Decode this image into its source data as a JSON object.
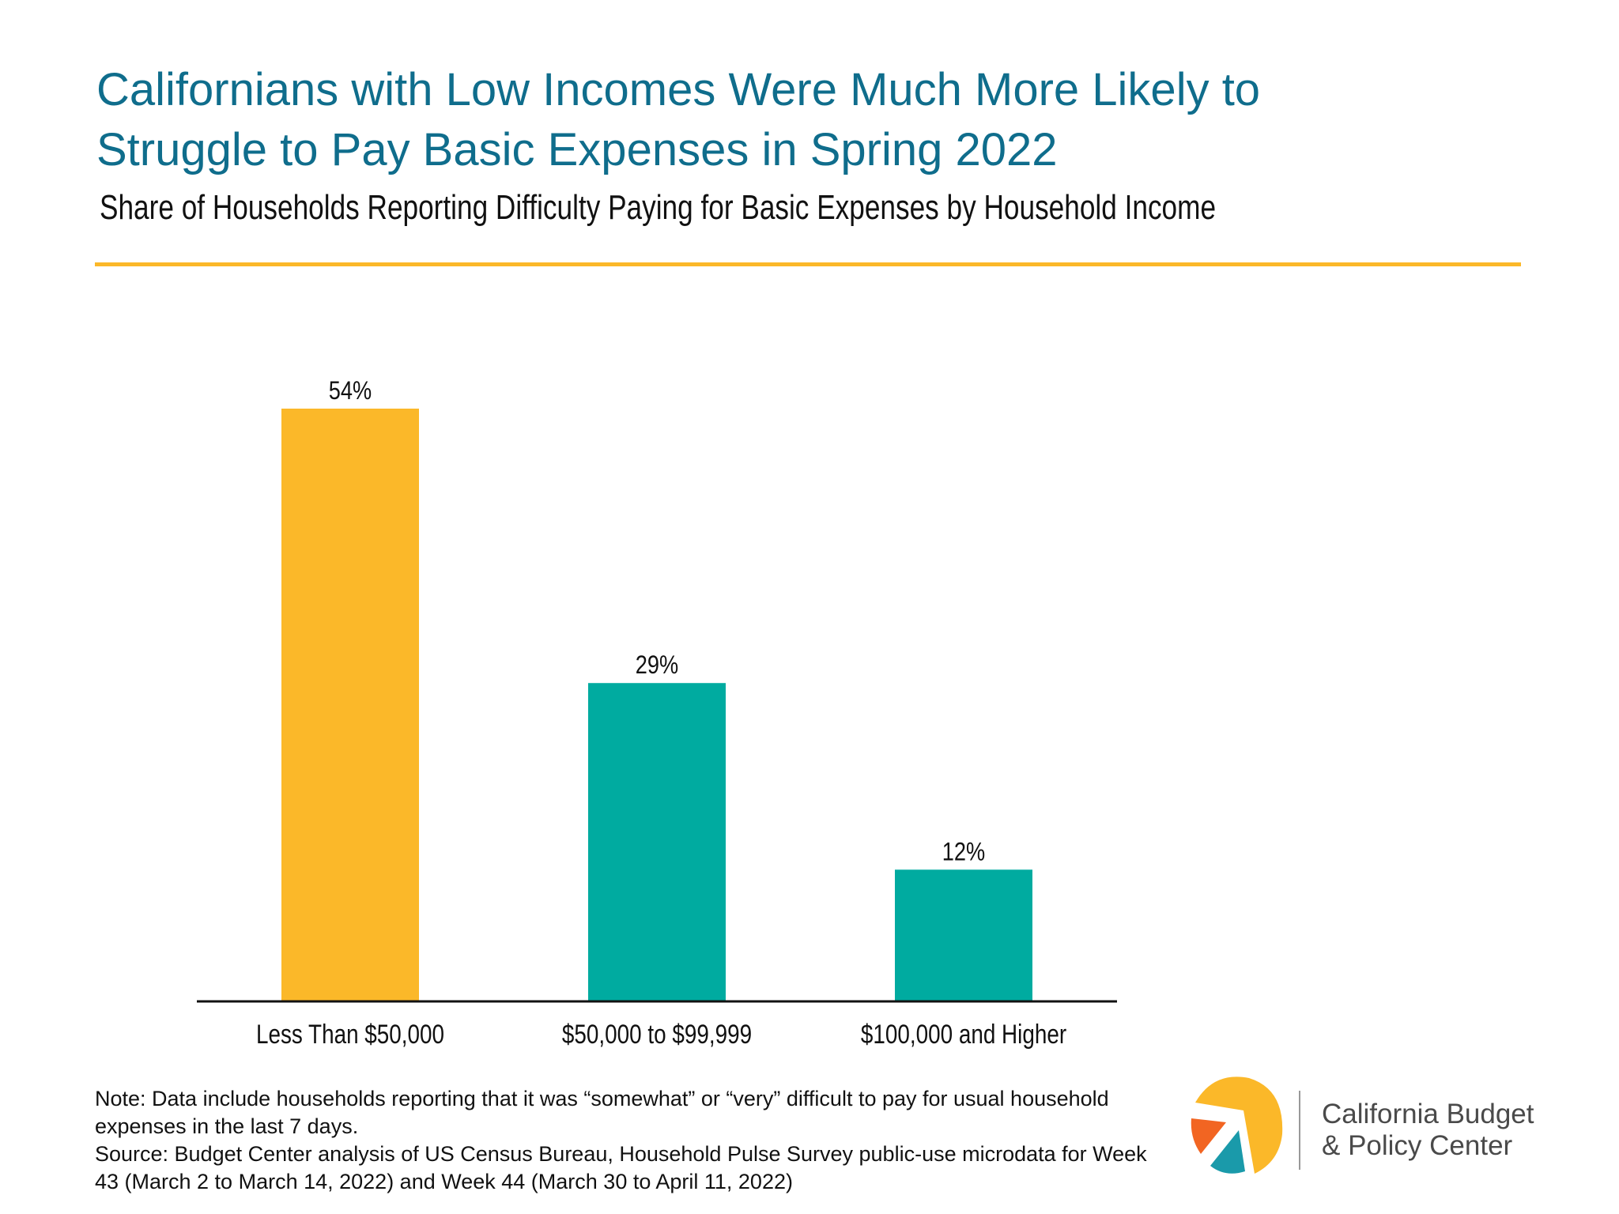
{
  "header": {
    "title_line1": "Californians with Low Incomes Were Much More Likely to",
    "title_line2": "Struggle to Pay Basic Expenses in Spring 2022",
    "subtitle": "Share of Households Reporting Difficulty Paying for Basic Expenses by Household Income"
  },
  "chart_data": {
    "type": "bar",
    "title": "Californians with Low Incomes Were Much More Likely to Struggle to Pay Basic Expenses in Spring 2022",
    "subtitle": "Share of Households Reporting Difficulty Paying for Basic Expenses by Household Income",
    "categories": [
      "Less Than $50,000",
      "$50,000 to $99,999",
      "$100,000 and Higher"
    ],
    "values": [
      54,
      29,
      12
    ],
    "value_labels": [
      "54%",
      "29%",
      "12%"
    ],
    "bar_colors": [
      "#fbb829",
      "#00aba0",
      "#00aba0"
    ],
    "xlabel": "",
    "ylabel": "",
    "ylim": [
      0,
      60
    ],
    "grid": false,
    "legend": "none"
  },
  "notes": {
    "note": "Note: Data include households reporting that it was “somewhat” or “very” difficult to pay for usual household expenses in the last 7 days.",
    "source": "Source: Budget Center analysis of US Census Bureau, Household Pulse Survey public-use microdata for Week 43 (March 2 to March 14, 2022) and Week 44 (March 30 to April 11, 2022)"
  },
  "logo": {
    "line1": "California Budget",
    "line2": "& Policy Center",
    "colors": {
      "yellow": "#fbb829",
      "orange": "#f26522",
      "teal": "#1a9aaa"
    }
  },
  "colors": {
    "title": "#0f6d8c",
    "rule": "#fbb829"
  }
}
